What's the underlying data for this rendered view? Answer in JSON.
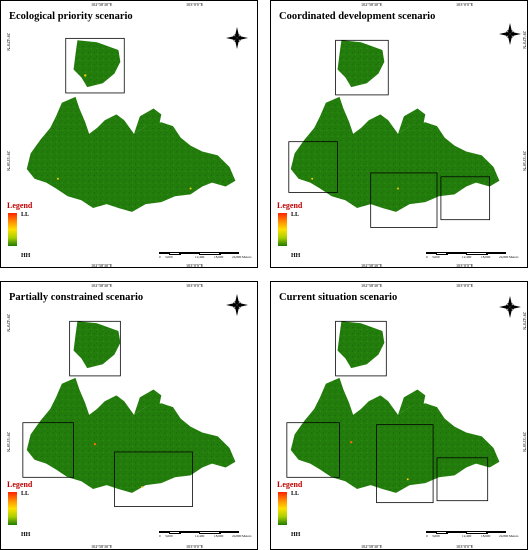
{
  "panels": [
    {
      "id": "ecological",
      "title": "Ecological priority scenario",
      "coord_top": "102°58'30\"E",
      "coord_top_right": "103°0'0\"E",
      "coord_left_top": "29°42'0\"N",
      "coord_left_mid": "29°33'30\"N",
      "coord_bottom_left": "102°58'30\"E",
      "coord_bottom_right": "103°0'0\"E",
      "legend_title": "Legend",
      "legend_high": "LL",
      "legend_low": "HH",
      "scale_labels": [
        "0",
        "3,000",
        "6,200",
        "12,400",
        "18,600",
        "24,800",
        "Meters"
      ]
    },
    {
      "id": "coordinated",
      "title": "Coordinated development scenario",
      "coord_top": "102°58'30\"E",
      "coord_top_right": "103°0'0\"E",
      "coord_right_top": "29°42'0\"N",
      "coord_right_mid": "29°33'30\"N",
      "coord_bottom_left": "102°58'30\"E",
      "coord_bottom_right": "103°0'0\"E",
      "legend_title": "Legend",
      "legend_high": "LL",
      "legend_low": "HH",
      "scale_labels": [
        "0",
        "3,000",
        "6,200",
        "12,400",
        "18,600",
        "24,800",
        "Meters"
      ]
    },
    {
      "id": "partial",
      "title": "Partially constrained scenario",
      "coord_top": "102°58'30\"E",
      "coord_top_right": "103°0'0\"E",
      "coord_left_top": "29°42'0\"N",
      "coord_left_mid": "29°33'30\"N",
      "coord_bottom_left": "102°58'30\"E",
      "coord_bottom_right": "103°0'0\"E",
      "legend_title": "Legend",
      "legend_high": "LL",
      "legend_low": "HH",
      "scale_labels": [
        "0",
        "3,000",
        "6,200",
        "12,400",
        "18,600",
        "24,800",
        "Meters"
      ]
    },
    {
      "id": "current",
      "title": "Current situation scenario",
      "coord_top": "102°58'30\"E",
      "coord_top_right": "103°0'0\"E",
      "coord_right_top": "29°42'0\"N",
      "coord_right_mid": "29°33'30\"N",
      "coord_bottom_left": "102°58'30\"E",
      "coord_bottom_right": "103°0'0\"E",
      "legend_title": "Legend",
      "legend_high": "LL",
      "legend_low": "HH",
      "scale_labels": [
        "0",
        "3,000",
        "6,200",
        "12,400",
        "18,600",
        "24,800",
        "Meters"
      ]
    }
  ],
  "compass": {
    "n": "N",
    "s": "S",
    "e": "E",
    "w": "W"
  },
  "colors": {
    "map_fill": "#1f7a0a",
    "map_dark": "#145a05",
    "hotspot": "#ffcc00",
    "legend_title": "#c00000"
  }
}
